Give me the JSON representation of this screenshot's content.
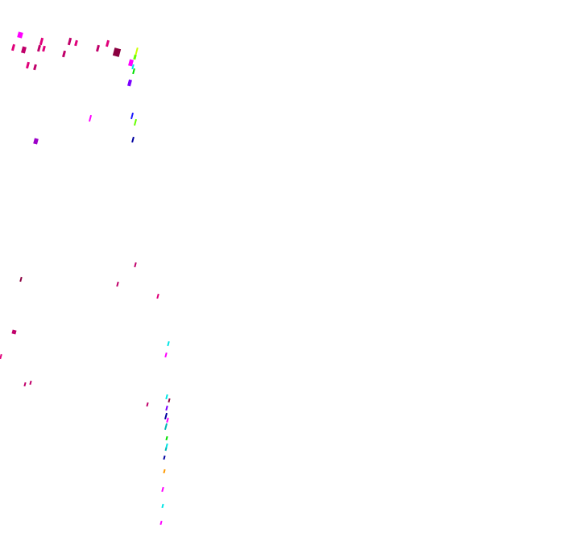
{
  "palette": {
    "background": "#ffffff",
    "magenta": "#ff00ff",
    "deep_pink": "#e0007a",
    "crimson": "#c0006a",
    "maroon": "#8b0040",
    "purple": "#9b00c8",
    "violet": "#7a00ff",
    "blue": "#1a1aff",
    "navy": "#0000a0",
    "lime": "#66ff00",
    "yellow_green": "#ccff00",
    "green": "#00e000",
    "cyan": "#00e5e5",
    "teal": "#00b4b4",
    "orange": "#ff9900"
  }
}
